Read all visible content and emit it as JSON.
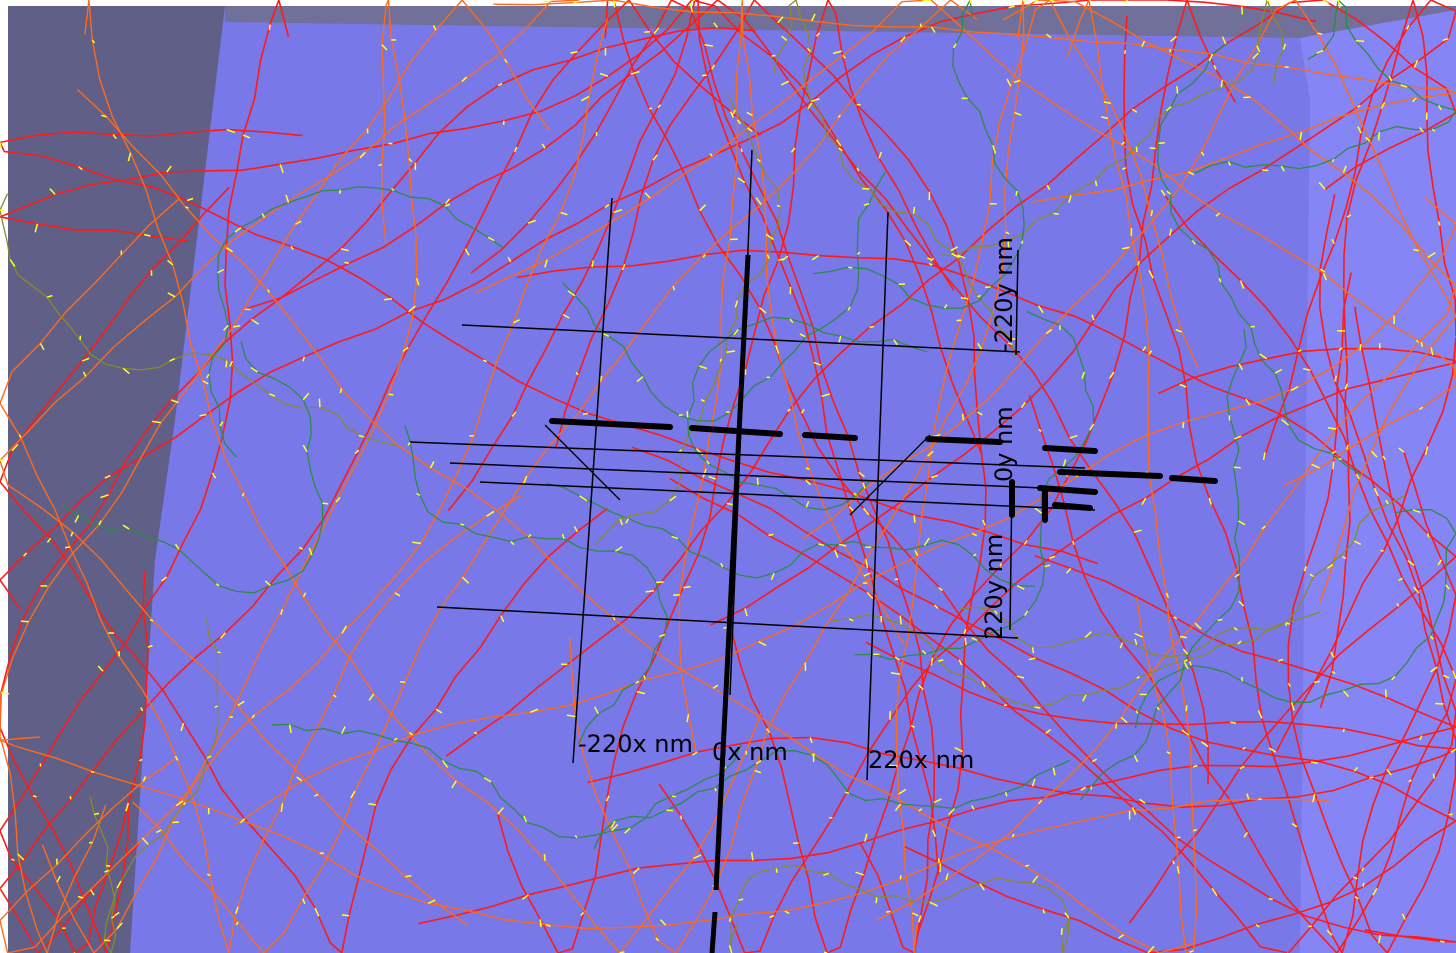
{
  "scene": {
    "colors": {
      "background": "#ffffff",
      "floor": "#7878e8",
      "left_wall": "#5f5f88",
      "top_wall": "#70709a",
      "right_wall": "#8585f5",
      "grid": "#000000",
      "track_primary": "#ff1a1a",
      "track_secondary": "#ff6a1a",
      "track_tertiary": "#2e8a4a",
      "track_olive": "#8a8a2a",
      "secondary_hits": "#ffff30"
    },
    "icons": [
      "track-lines",
      "measurement-grid",
      "dashed-axis"
    ]
  },
  "axes": {
    "x_labels": [
      "-220x nm",
      "0x nm",
      "220x nm"
    ],
    "y_labels": [
      "-220y nm",
      "0y nm",
      "220y nm"
    ]
  }
}
